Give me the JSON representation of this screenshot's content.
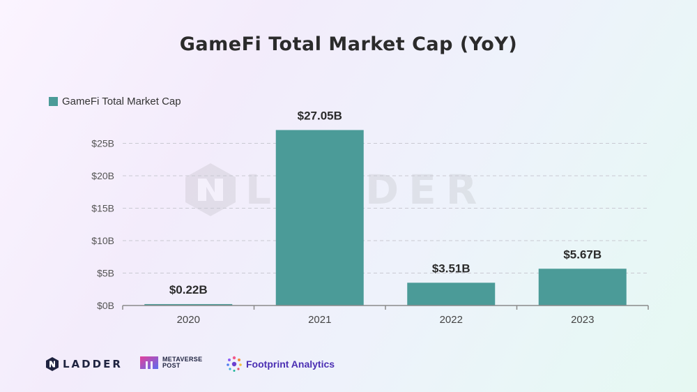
{
  "title": "GameFi Total Market Cap (YoY)",
  "legend": {
    "label": "GameFi Total Market Cap",
    "color": "#4b9b98"
  },
  "watermark": {
    "text": "LADDER"
  },
  "chart_data": {
    "type": "bar",
    "categories": [
      "2020",
      "2021",
      "2022",
      "2023"
    ],
    "values": [
      0.22,
      27.05,
      3.51,
      5.67
    ],
    "data_labels": [
      "$0.22B",
      "$27.05B",
      "$3.51B",
      "$5.67B"
    ],
    "series": [
      {
        "name": "GameFi Total Market Cap",
        "values": [
          0.22,
          27.05,
          3.51,
          5.67
        ]
      }
    ],
    "ylim": [
      0,
      27.5
    ],
    "yticks": [
      0,
      5,
      10,
      15,
      20,
      25
    ],
    "ytick_labels": [
      "$0B",
      "$5B",
      "$10B",
      "$15B",
      "$20B",
      "$25B"
    ],
    "grid": true,
    "legend_position": "top-left",
    "bar_color": "#4b9b98"
  },
  "footer": {
    "logos": [
      {
        "name": "ladder",
        "text": "LADDER"
      },
      {
        "name": "metaverse-post",
        "lines": [
          "METAVERSE",
          "POST"
        ]
      },
      {
        "name": "footprint-analytics",
        "text": "Footprint Analytics"
      }
    ]
  }
}
